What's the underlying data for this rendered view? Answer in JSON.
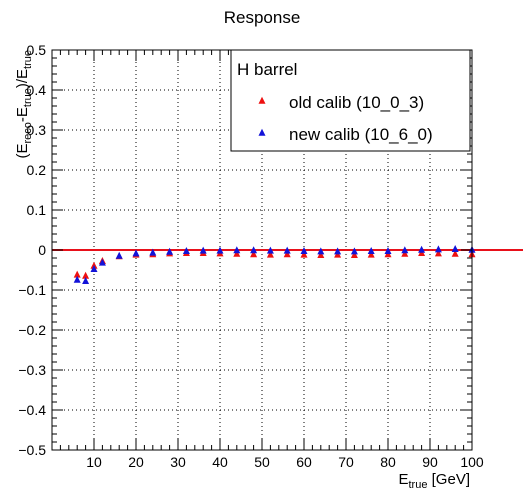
{
  "chart_data": {
    "type": "scatter",
    "title": "Response",
    "xlabel": {
      "main": "E",
      "sub": "true",
      "unit": " [GeV]"
    },
    "ylabel": {
      "parts": [
        {
          "t": "(E",
          "sub": false
        },
        {
          "t": "reco",
          "sub": true
        },
        {
          "t": "-E",
          "sub": false
        },
        {
          "t": "true",
          "sub": true
        },
        {
          "t": ")/E",
          "sub": false
        },
        {
          "t": "true",
          "sub": true
        }
      ]
    },
    "xlim": [
      0,
      100
    ],
    "ylim": [
      -0.5,
      0.5
    ],
    "x_ticks": [
      10,
      20,
      30,
      40,
      50,
      60,
      70,
      80,
      90,
      100
    ],
    "x_tick_labels": [
      "10",
      "20",
      "30",
      "40",
      "50",
      "60",
      "70",
      "80",
      "90",
      "100"
    ],
    "y_ticks": [
      -0.5,
      -0.4,
      -0.3,
      -0.2,
      -0.1,
      0,
      0.1,
      0.2,
      0.3,
      0.4,
      0.5
    ],
    "y_tick_labels": [
      "−0.5",
      "−0.4",
      "−0.3",
      "−0.2",
      "−0.1",
      "0",
      "0.1",
      "0.2",
      "0.3",
      "0.4",
      "0.5"
    ],
    "grid": true,
    "reference_line": {
      "y": 0,
      "color": "#e8101a"
    },
    "legend": {
      "title": "H barrel",
      "placement": "top-right"
    },
    "series": [
      {
        "name": "old calib (10_0_3)",
        "color": "#ee1010",
        "marker": "triangle-up",
        "points": [
          [
            6,
            -0.062
          ],
          [
            8,
            -0.065
          ],
          [
            10,
            -0.04
          ],
          [
            12,
            -0.028
          ],
          [
            16,
            -0.016
          ],
          [
            20,
            -0.012
          ],
          [
            24,
            -0.011
          ],
          [
            28,
            -0.009
          ],
          [
            32,
            -0.008
          ],
          [
            36,
            -0.008
          ],
          [
            40,
            -0.009
          ],
          [
            44,
            -0.01
          ],
          [
            48,
            -0.011
          ],
          [
            52,
            -0.012
          ],
          [
            56,
            -0.011
          ],
          [
            60,
            -0.012
          ],
          [
            64,
            -0.013
          ],
          [
            68,
            -0.012
          ],
          [
            72,
            -0.013
          ],
          [
            76,
            -0.012
          ],
          [
            80,
            -0.011
          ],
          [
            84,
            -0.01
          ],
          [
            88,
            -0.008
          ],
          [
            92,
            -0.009
          ],
          [
            96,
            -0.01
          ],
          [
            100,
            -0.011
          ]
        ]
      },
      {
        "name": "new calib (10_6_0)",
        "color": "#1212d8",
        "marker": "triangle-up",
        "points": [
          [
            6,
            -0.075
          ],
          [
            8,
            -0.078
          ],
          [
            10,
            -0.048
          ],
          [
            12,
            -0.032
          ],
          [
            16,
            -0.015
          ],
          [
            20,
            -0.009
          ],
          [
            24,
            -0.007
          ],
          [
            28,
            -0.005
          ],
          [
            32,
            -0.003
          ],
          [
            36,
            -0.002
          ],
          [
            40,
            -0.002
          ],
          [
            44,
            -0.001
          ],
          [
            48,
            -0.001
          ],
          [
            52,
            -0.002
          ],
          [
            56,
            -0.002
          ],
          [
            60,
            -0.003
          ],
          [
            64,
            -0.004
          ],
          [
            68,
            -0.004
          ],
          [
            72,
            -0.004
          ],
          [
            76,
            -0.003
          ],
          [
            80,
            -0.003
          ],
          [
            84,
            -0.001
          ],
          [
            88,
            0.0
          ],
          [
            92,
            0.001
          ],
          [
            96,
            0.002
          ],
          [
            100,
            0.0
          ]
        ]
      }
    ]
  }
}
